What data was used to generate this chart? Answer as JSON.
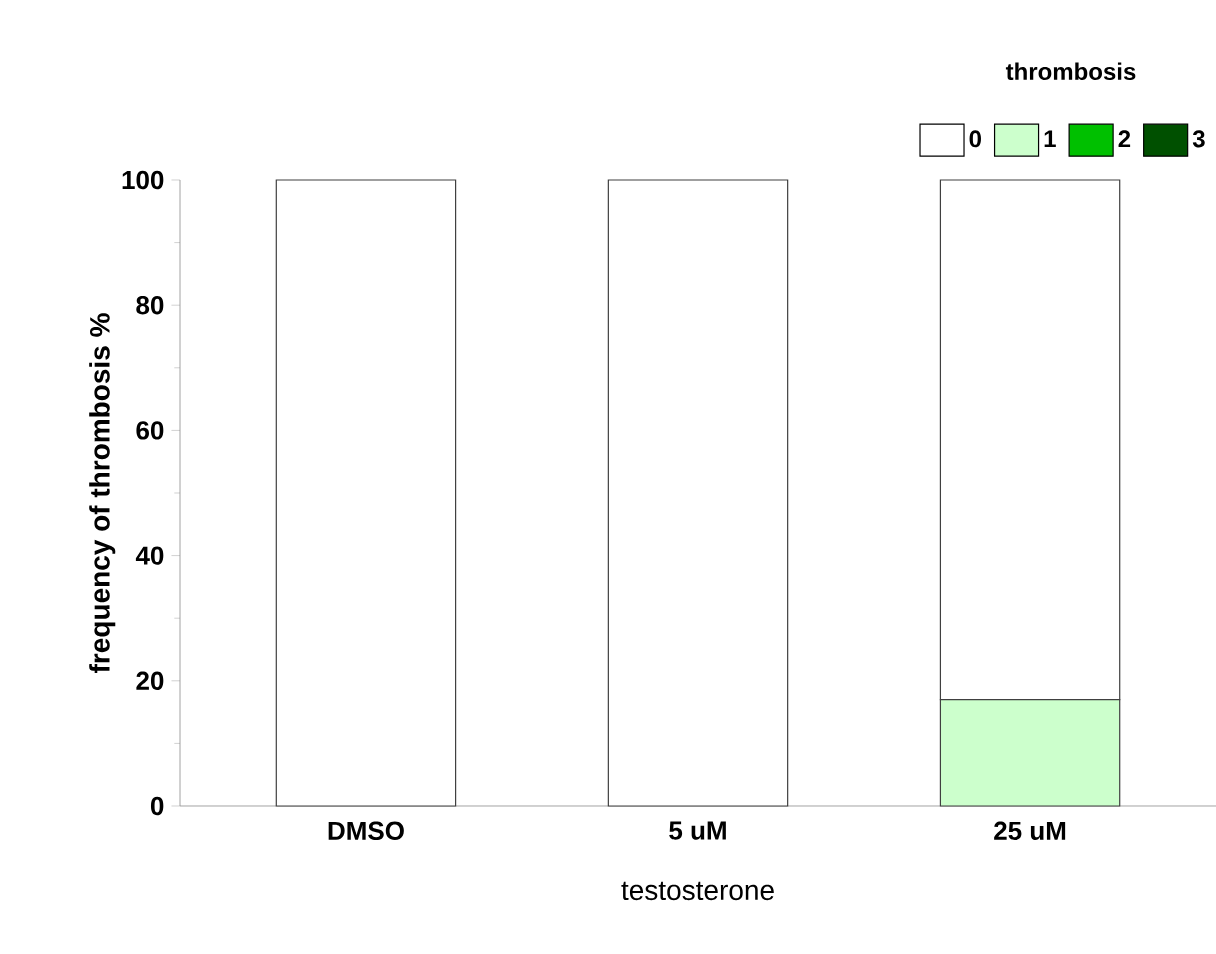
{
  "chart_data": {
    "type": "bar",
    "stacked": true,
    "xlabel": "testosterone",
    "ylabel": "frequency of thrombosis %",
    "legend_title": "thrombosis",
    "categories": [
      "DMSO",
      "5 uM",
      "25 uM"
    ],
    "series": [
      {
        "name": "1",
        "color": "#ccffcc",
        "values": [
          0,
          0,
          17
        ]
      },
      {
        "name": "2",
        "color": "#00c000",
        "values": [
          0,
          0,
          0
        ]
      },
      {
        "name": "3",
        "color": "#005000",
        "values": [
          0,
          0,
          0
        ]
      },
      {
        "name": "0",
        "color": "#ffffff",
        "values": [
          100,
          100,
          83
        ]
      }
    ],
    "ylim": [
      0,
      100
    ],
    "yticks": [
      0,
      20,
      40,
      60,
      80,
      100
    ],
    "legend": "top right"
  }
}
